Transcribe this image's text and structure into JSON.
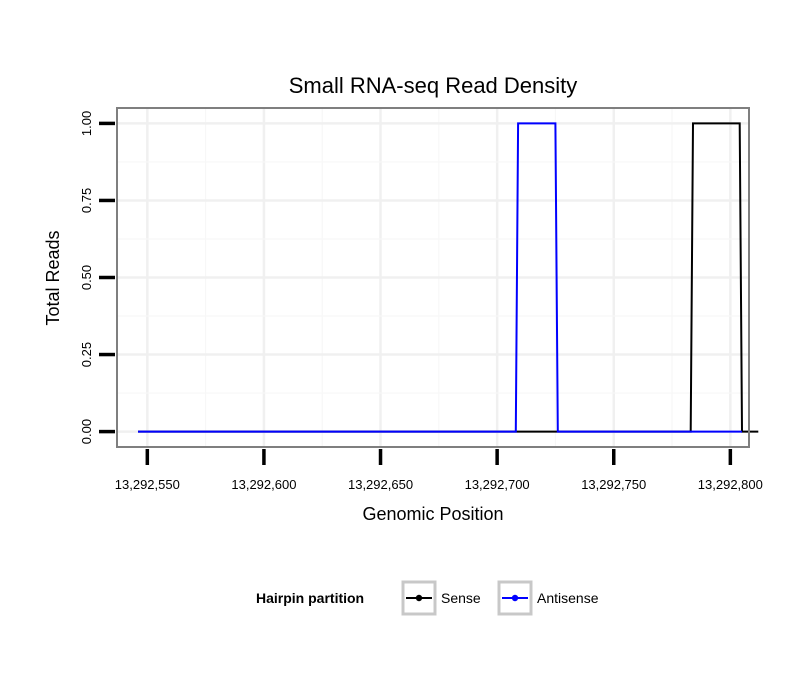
{
  "chart_data": {
    "type": "line",
    "title": "Small RNA-seq Read Density",
    "xlabel": "Genomic Position",
    "ylabel": "Total Reads",
    "xlim": [
      13292537,
      13292808
    ],
    "ylim": [
      -0.05,
      1.05
    ],
    "x_ticks": [
      13292550,
      13292600,
      13292650,
      13292700,
      13292750,
      13292800
    ],
    "x_tick_labels": [
      "13,292,550",
      "13,292,600",
      "13,292,650",
      "13,292,700",
      "13,292,750",
      "13,292,800"
    ],
    "y_ticks": [
      0,
      0.25,
      0.5,
      0.75,
      1.0
    ],
    "y_tick_labels": [
      "0.00",
      "0.25",
      "0.50",
      "0.75",
      "1.00"
    ],
    "grid": true,
    "legend": {
      "title": "Hairpin partition",
      "position": "bottom"
    },
    "series": [
      {
        "name": "Sense",
        "color": "#000000",
        "x": [
          13292546,
          13292783,
          13292784,
          13292804,
          13292805,
          13292812
        ],
        "y": [
          0,
          0,
          1,
          1,
          0,
          0
        ]
      },
      {
        "name": "Antisense",
        "color": "#0000ff",
        "x": [
          13292546,
          13292708,
          13292709,
          13292725,
          13292726,
          13292805
        ],
        "y": [
          0,
          0,
          1,
          1,
          0,
          0
        ]
      }
    ]
  }
}
